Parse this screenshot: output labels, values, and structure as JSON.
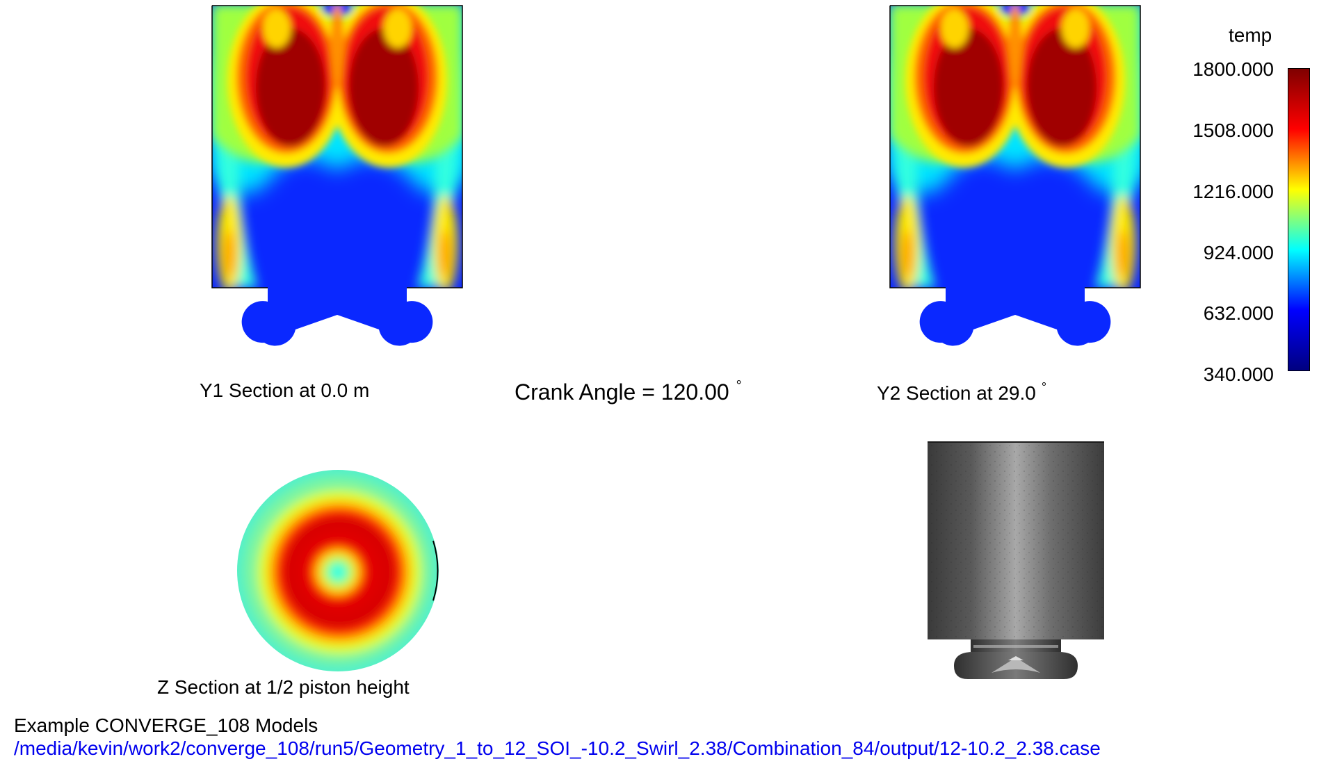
{
  "views": {
    "y1": {
      "caption": "Y1 Section at 0.0 m"
    },
    "y2": {
      "caption": "Y2 Section at 29.0",
      "unit": "°"
    },
    "z": {
      "caption": "Z Section at 1/2 piston height"
    }
  },
  "crank": {
    "text": "Crank Angle = 120.00",
    "unit": "°"
  },
  "legend": {
    "variable": "temp",
    "ticks": [
      "1800.000",
      "1508.000",
      "1216.000",
      "924.000",
      "632.000",
      "340.000"
    ],
    "range": [
      340,
      1800
    ],
    "colormap": [
      "#00007f",
      "#0000ff",
      "#00ffff",
      "#ffff00",
      "#ff0000",
      "#7f0000"
    ]
  },
  "footer": {
    "title": "Example CONVERGE_108 Models",
    "path": "/media/kevin/work2/converge_108/run5/Geometry_1_to_12_SOI_-10.2_Swirl_2.38/Combination_84/output/12-10.2_2.38.case",
    "path_color": "#0000ee"
  }
}
